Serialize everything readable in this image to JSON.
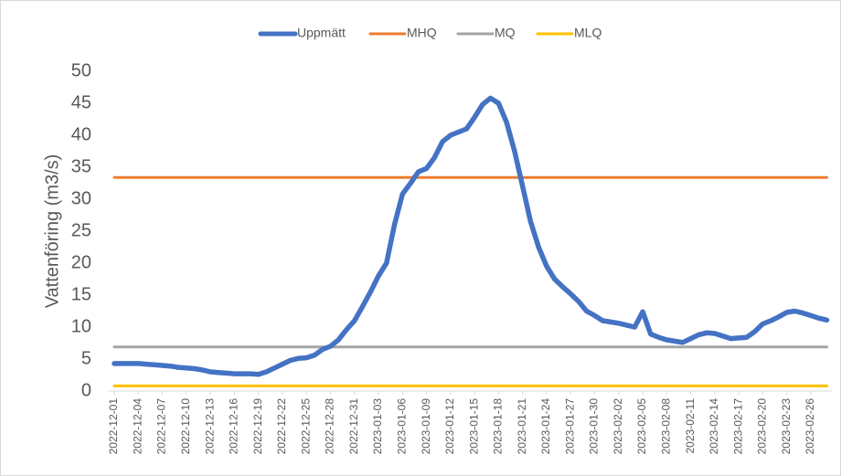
{
  "chart_data": {
    "type": "line",
    "y_axis_label": "Vattenföring (m3/s)",
    "categories": [
      "2022-12-01",
      null,
      null,
      "2022-12-04",
      null,
      null,
      "2022-12-07",
      null,
      null,
      "2022-12-10",
      null,
      null,
      "2022-12-13",
      null,
      null,
      "2022-12-16",
      null,
      null,
      "2022-12-19",
      null,
      null,
      "2022-12-22",
      null,
      null,
      "2022-12-25",
      null,
      null,
      "2022-12-28",
      null,
      null,
      "2022-12-31",
      null,
      null,
      "2023-01-03",
      null,
      null,
      "2023-01-06",
      null,
      null,
      "2023-01-09",
      null,
      null,
      "2023-01-12",
      null,
      null,
      "2023-01-15",
      null,
      null,
      "2023-01-18",
      null,
      null,
      "2023-01-21",
      null,
      null,
      "2023-01-24",
      null,
      null,
      "2023-01-27",
      null,
      null,
      "2023-01-30",
      null,
      null,
      "2023-02-02",
      null,
      null,
      "2023-02-05",
      null,
      null,
      "2023-02-08",
      null,
      null,
      "2023-02-11",
      null,
      null,
      "2023-02-14",
      null,
      null,
      "2023-02-17",
      null,
      null,
      "2023-02-20",
      null,
      null,
      "2023-02-23",
      null,
      null,
      "2023-02-26",
      null,
      null
    ],
    "series": [
      {
        "name": "Uppmätt",
        "color": "#4472c4",
        "values": [
          4.3,
          4.3,
          4.3,
          4.3,
          4.2,
          4.1,
          4.0,
          3.9,
          3.7,
          3.6,
          3.5,
          3.3,
          3.0,
          2.9,
          2.8,
          2.7,
          2.7,
          2.7,
          2.6,
          3.0,
          3.6,
          4.2,
          4.8,
          5.1,
          5.2,
          5.6,
          6.5,
          7.0,
          8.0,
          9.6,
          11.0,
          13.2,
          15.5,
          18.0,
          20.0,
          26.0,
          30.8,
          32.5,
          34.3,
          34.8,
          36.5,
          39.0,
          40.0,
          40.5,
          41.0,
          42.8,
          44.8,
          45.8,
          45.0,
          42.0,
          37.5,
          32.0,
          26.5,
          22.5,
          19.5,
          17.5,
          16.3,
          15.2,
          14.0,
          12.5,
          11.8,
          11.0,
          10.8,
          10.6,
          10.3,
          10.0,
          12.4,
          8.9,
          8.4,
          8.0,
          7.8,
          7.6,
          8.2,
          8.8,
          9.1,
          9.0,
          8.6,
          8.2,
          8.3,
          8.4,
          9.3,
          10.5,
          11.0,
          11.6,
          12.3,
          12.5,
          12.2,
          11.8,
          11.4,
          11.1
        ]
      },
      {
        "name": "MHQ",
        "color": "#ed7d31",
        "values": [
          33.4,
          33.4,
          33.4,
          33.4,
          33.4,
          33.4,
          33.4,
          33.4,
          33.4,
          33.4,
          33.4,
          33.4,
          33.4,
          33.4,
          33.4,
          33.4,
          33.4,
          33.4,
          33.4,
          33.4,
          33.4,
          33.4,
          33.4,
          33.4,
          33.4,
          33.4,
          33.4,
          33.4,
          33.4,
          33.4,
          33.4,
          33.4,
          33.4,
          33.4,
          33.4,
          33.4,
          33.4,
          33.4,
          33.4,
          33.4,
          33.4,
          33.4,
          33.4,
          33.4,
          33.4,
          33.4,
          33.4,
          33.4,
          33.4,
          33.4,
          33.4,
          33.4,
          33.4,
          33.4,
          33.4,
          33.4,
          33.4,
          33.4,
          33.4,
          33.4,
          33.4,
          33.4,
          33.4,
          33.4,
          33.4,
          33.4,
          33.4,
          33.4,
          33.4,
          33.4,
          33.4,
          33.4,
          33.4,
          33.4,
          33.4,
          33.4,
          33.4,
          33.4,
          33.4,
          33.4,
          33.4,
          33.4,
          33.4,
          33.4,
          33.4,
          33.4,
          33.4,
          33.4,
          33.4,
          33.4
        ]
      },
      {
        "name": "MQ",
        "color": "#a5a5a5",
        "values": [
          6.9,
          6.9,
          6.9,
          6.9,
          6.9,
          6.9,
          6.9,
          6.9,
          6.9,
          6.9,
          6.9,
          6.9,
          6.9,
          6.9,
          6.9,
          6.9,
          6.9,
          6.9,
          6.9,
          6.9,
          6.9,
          6.9,
          6.9,
          6.9,
          6.9,
          6.9,
          6.9,
          6.9,
          6.9,
          6.9,
          6.9,
          6.9,
          6.9,
          6.9,
          6.9,
          6.9,
          6.9,
          6.9,
          6.9,
          6.9,
          6.9,
          6.9,
          6.9,
          6.9,
          6.9,
          6.9,
          6.9,
          6.9,
          6.9,
          6.9,
          6.9,
          6.9,
          6.9,
          6.9,
          6.9,
          6.9,
          6.9,
          6.9,
          6.9,
          6.9,
          6.9,
          6.9,
          6.9,
          6.9,
          6.9,
          6.9,
          6.9,
          6.9,
          6.9,
          6.9,
          6.9,
          6.9,
          6.9,
          6.9,
          6.9,
          6.9,
          6.9,
          6.9,
          6.9,
          6.9,
          6.9,
          6.9,
          6.9,
          6.9,
          6.9,
          6.9,
          6.9,
          6.9,
          6.9,
          6.9
        ]
      },
      {
        "name": "MLQ",
        "color": "#ffc000",
        "values": [
          0.8,
          0.8,
          0.8,
          0.8,
          0.8,
          0.8,
          0.8,
          0.8,
          0.8,
          0.8,
          0.8,
          0.8,
          0.8,
          0.8,
          0.8,
          0.8,
          0.8,
          0.8,
          0.8,
          0.8,
          0.8,
          0.8,
          0.8,
          0.8,
          0.8,
          0.8,
          0.8,
          0.8,
          0.8,
          0.8,
          0.8,
          0.8,
          0.8,
          0.8,
          0.8,
          0.8,
          0.8,
          0.8,
          0.8,
          0.8,
          0.8,
          0.8,
          0.8,
          0.8,
          0.8,
          0.8,
          0.8,
          0.8,
          0.8,
          0.8,
          0.8,
          0.8,
          0.8,
          0.8,
          0.8,
          0.8,
          0.8,
          0.8,
          0.8,
          0.8,
          0.8,
          0.8,
          0.8,
          0.8,
          0.8,
          0.8,
          0.8,
          0.8,
          0.8,
          0.8,
          0.8,
          0.8,
          0.8,
          0.8,
          0.8,
          0.8,
          0.8,
          0.8,
          0.8,
          0.8,
          0.8,
          0.8,
          0.8,
          0.8,
          0.8,
          0.8,
          0.8,
          0.8,
          0.8,
          0.8
        ]
      }
    ],
    "ylim": [
      0,
      50
    ],
    "yticks": [
      0,
      5,
      10,
      15,
      20,
      25,
      30,
      35,
      40,
      45,
      50
    ],
    "grid": false,
    "legend": "top"
  }
}
